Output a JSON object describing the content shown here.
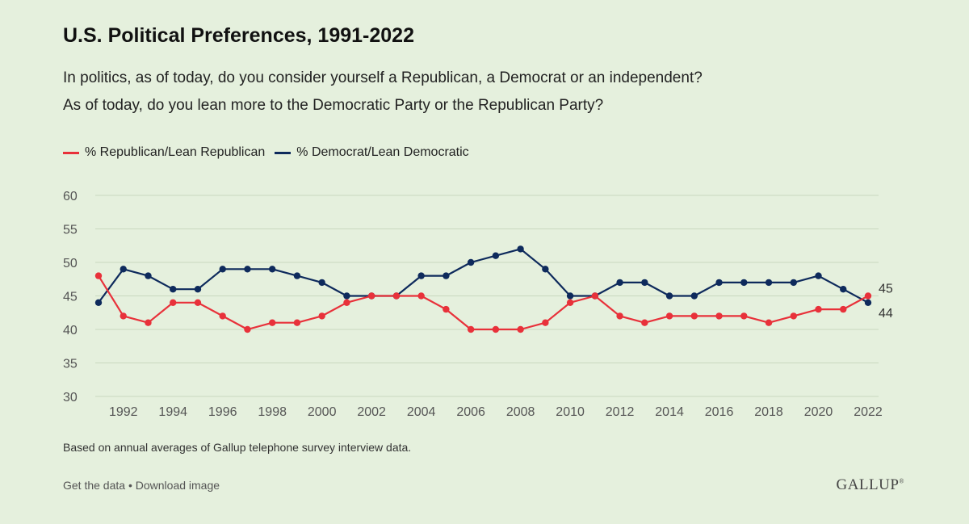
{
  "header": {
    "title": "U.S. Political Preferences, 1991-2022",
    "question1": "In politics, as of today, do you consider yourself a Republican, a Democrat or an independent?",
    "question2": "As of today, do you lean more to the Democratic Party or the Republican Party?"
  },
  "footer": {
    "note": "Based on annual averages of Gallup telephone survey interview data.",
    "get_data": "Get the data",
    "separator": " • ",
    "download": "Download image",
    "logo": "GALLUP",
    "logo_mark": "®"
  },
  "chart_data": {
    "type": "line",
    "title": "U.S. Political Preferences, 1991-2022",
    "xlabel": "",
    "ylabel": "",
    "ylim": [
      30,
      60
    ],
    "yticks": [
      30,
      35,
      40,
      45,
      50,
      55,
      60
    ],
    "xticks": [
      1992,
      1994,
      1996,
      1998,
      2000,
      2002,
      2004,
      2006,
      2008,
      2010,
      2012,
      2014,
      2016,
      2018,
      2020,
      2022
    ],
    "grid": "horizontal",
    "legend": "top-left",
    "x": [
      1991,
      1992,
      1993,
      1994,
      1995,
      1996,
      1997,
      1998,
      1999,
      2000,
      2001,
      2002,
      2003,
      2004,
      2005,
      2006,
      2007,
      2008,
      2009,
      2010,
      2011,
      2012,
      2013,
      2014,
      2015,
      2016,
      2017,
      2018,
      2019,
      2020,
      2021,
      2022
    ],
    "series": [
      {
        "name": "% Republican/Lean Republican",
        "color": "#e8313a",
        "values": [
          48,
          42,
          41,
          44,
          44,
          42,
          40,
          41,
          41,
          42,
          44,
          45,
          45,
          45,
          43,
          40,
          40,
          40,
          41,
          44,
          45,
          42,
          41,
          42,
          42,
          42,
          42,
          41,
          42,
          43,
          43,
          45
        ],
        "end_label": "45"
      },
      {
        "name": "% Democrat/Lean Democratic",
        "color": "#0e2a5c",
        "values": [
          44,
          49,
          48,
          46,
          46,
          49,
          49,
          49,
          48,
          47,
          45,
          45,
          45,
          48,
          48,
          50,
          51,
          52,
          49,
          45,
          45,
          47,
          47,
          45,
          45,
          47,
          47,
          47,
          47,
          48,
          46,
          44
        ],
        "end_label": "44"
      }
    ]
  }
}
